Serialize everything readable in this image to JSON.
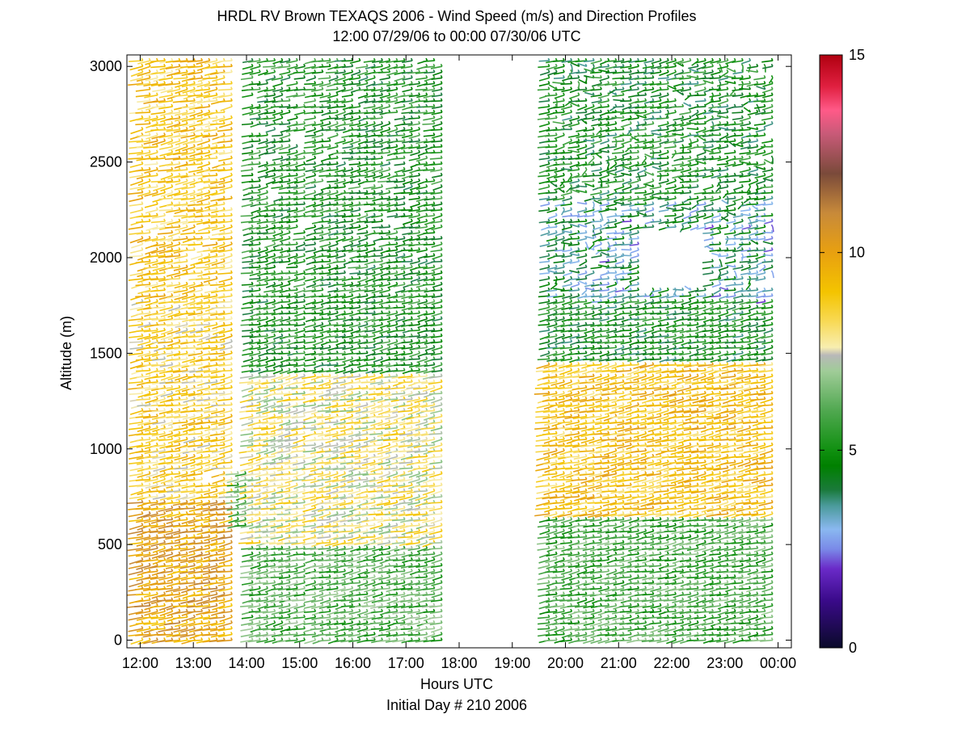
{
  "chart_data": {
    "type": "barb-profile",
    "title_lines": [
      "HRDL RV Brown TEXAQS 2006 - Wind Speed (m/s) and Direction Profiles",
      "12:00 07/29/06 to 00:00 07/30/06  UTC"
    ],
    "xlabel": "Hours UTC",
    "xlabel_sub": "Initial Day # 210  2006",
    "ylabel": "Altitude (m)",
    "xlim": [
      11.75,
      24.25
    ],
    "ylim": [
      -40,
      3060
    ],
    "x_ticks": [
      12,
      13,
      14,
      15,
      16,
      17,
      18,
      19,
      20,
      21,
      22,
      23,
      24
    ],
    "x_tick_labels": [
      "12:00",
      "13:00",
      "14:00",
      "15:00",
      "16:00",
      "17:00",
      "18:00",
      "19:00",
      "20:00",
      "21:00",
      "22:00",
      "23:00",
      "00:00"
    ],
    "y_ticks": [
      0,
      500,
      1000,
      1500,
      2000,
      2500,
      3000
    ],
    "y_tick_labels": [
      "0",
      "500",
      "1000",
      "1500",
      "2000",
      "2500",
      "3000"
    ],
    "colorbar": {
      "range": [
        0,
        15
      ],
      "ticks": [
        0,
        5,
        10,
        15
      ],
      "tick_labels": [
        "0",
        "5",
        "10",
        "15"
      ],
      "stops": [
        {
          "v": 0.0,
          "c": "#0a0a2a"
        },
        {
          "v": 1.2,
          "c": "#3a0a8a"
        },
        {
          "v": 2.0,
          "c": "#6a2ac8"
        },
        {
          "v": 2.5,
          "c": "#7a8ae8"
        },
        {
          "v": 3.0,
          "c": "#8ab8f0"
        },
        {
          "v": 3.6,
          "c": "#4a9a9a"
        },
        {
          "v": 4.0,
          "c": "#1a7a3a"
        },
        {
          "v": 4.6,
          "c": "#008000"
        },
        {
          "v": 5.0,
          "c": "#109010"
        },
        {
          "v": 6.0,
          "c": "#50a850"
        },
        {
          "v": 7.0,
          "c": "#a0cc98"
        },
        {
          "v": 7.4,
          "c": "#b8b8b8"
        },
        {
          "v": 7.6,
          "c": "#f8eeb0"
        },
        {
          "v": 8.3,
          "c": "#f8d850"
        },
        {
          "v": 9.0,
          "c": "#f4c400"
        },
        {
          "v": 10.0,
          "c": "#e8a010"
        },
        {
          "v": 11.0,
          "c": "#c88a3a"
        },
        {
          "v": 12.0,
          "c": "#7a4a3a"
        },
        {
          "v": 13.0,
          "c": "#c85a78"
        },
        {
          "v": 13.6,
          "c": "#ff5a88"
        },
        {
          "v": 14.2,
          "c": "#e02040"
        },
        {
          "v": 15.0,
          "c": "#b00010"
        }
      ]
    },
    "segments": [
      {
        "start": 12.05,
        "end": 13.8,
        "top": 3060,
        "gaps": [
          {
            "x0": 13.3,
            "x1": 13.55,
            "y0": 820,
            "y1": 880
          }
        ]
      },
      {
        "start": 13.85,
        "end": 14.05,
        "top": 880,
        "bottom": 600
      },
      {
        "start": 14.12,
        "end": 15.2,
        "top": 3060
      },
      {
        "start": 15.3,
        "end": 17.8,
        "top": 3060
      },
      {
        "start": 19.7,
        "end": 24.0,
        "top": 3060,
        "gaps": [
          {
            "x0": 21.5,
            "x1": 22.7,
            "y0": 1850,
            "y1": 2150
          }
        ]
      }
    ],
    "speed_profile_by_period": [
      {
        "x0": 12.0,
        "x1": 13.8,
        "layers": [
          {
            "z0": 0,
            "z1": 750,
            "speed": 10.0
          },
          {
            "z0": 750,
            "z1": 1800,
            "speed": 8.5
          },
          {
            "z0": 1800,
            "z1": 3060,
            "speed": 8.8
          }
        ]
      },
      {
        "x0": 14.1,
        "x1": 17.8,
        "layers": [
          {
            "z0": 0,
            "z1": 500,
            "speed": 6.0
          },
          {
            "z0": 500,
            "z1": 1400,
            "speed": 7.8
          },
          {
            "z0": 1400,
            "z1": 3060,
            "speed": 5.0
          }
        ]
      },
      {
        "x0": 19.7,
        "x1": 24.0,
        "layers": [
          {
            "z0": 0,
            "z1": 650,
            "speed": 5.8
          },
          {
            "z0": 650,
            "z1": 1450,
            "speed": 9.0
          },
          {
            "z0": 1450,
            "z1": 1800,
            "speed": 4.8
          },
          {
            "z0": 1800,
            "z1": 2300,
            "speed": 3.8
          },
          {
            "z0": 2300,
            "z1": 3060,
            "speed": 4.8
          }
        ]
      }
    ],
    "direction_deg_typical": 200
  }
}
